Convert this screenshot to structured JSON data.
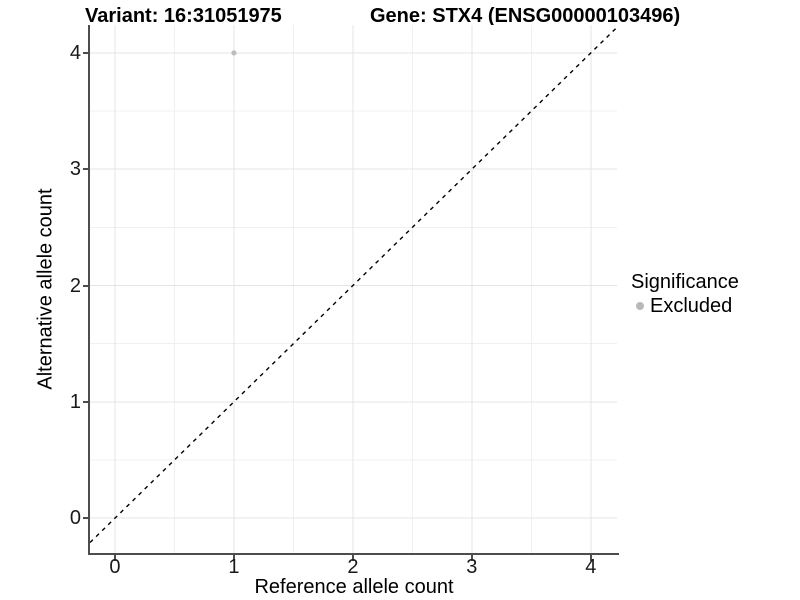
{
  "titles": {
    "left": "Variant: 16:31051975",
    "right": "Gene: STX4 (ENSG00000103496)"
  },
  "chart_data": {
    "type": "scatter",
    "title": "Variant: 16:31051975   Gene: STX4 (ENSG00000103496)",
    "xlabel": "Reference allele count",
    "ylabel": "Alternative allele count",
    "xlim": [
      -0.21,
      4.22
    ],
    "ylim": [
      -0.3,
      4.24
    ],
    "x_ticks": [
      0,
      1,
      2,
      3,
      4
    ],
    "y_ticks": [
      0,
      1,
      2,
      3,
      4
    ],
    "x_minor_ticks": [
      0.5,
      1.5,
      2.5,
      3.5
    ],
    "y_minor_ticks": [
      0.5,
      1.5,
      2.5,
      3.5
    ],
    "grid": true,
    "legend_position": "right",
    "series": [
      {
        "name": "Excluded",
        "color": "#bdbdbd",
        "point_radius": 2.6,
        "points": [
          {
            "x": 1,
            "y": 4
          }
        ]
      }
    ],
    "reference_line": {
      "type": "identity",
      "style": "dashed",
      "color": "#000000",
      "width": 1.4,
      "dash": "4 4.5"
    }
  },
  "legend": {
    "title": "Significance",
    "entries": [
      {
        "label": "Excluded",
        "color": "#b9b9b9"
      }
    ]
  },
  "colors": {
    "background": "#ffffff",
    "grid_major": "#e4e4e4",
    "grid_minor": "#f0f0f0",
    "axis_line": "#4d4d4d",
    "tick_text": "#1a1a1a",
    "title_text": "#000000"
  }
}
